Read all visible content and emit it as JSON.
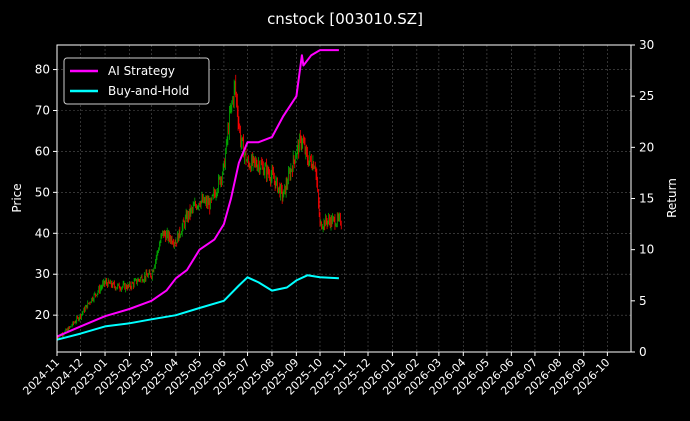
{
  "chart_data": {
    "type": "line",
    "title": "cnstock [003010.SZ]",
    "xlabel": "",
    "ylabel_left": "Price",
    "ylabel_right": "Return",
    "grid": true,
    "legend_position": "top-left",
    "background": "#000000",
    "x_tick_labels": [
      "2024-11",
      "2024-12",
      "2025-01",
      "2025-02",
      "2025-03",
      "2025-04",
      "2025-05",
      "2025-06",
      "2025-07",
      "2025-08",
      "2025-09",
      "2025-10",
      "2025-11",
      "2025-12",
      "2026-01",
      "2026-02",
      "2026-03",
      "2026-04",
      "2026-05",
      "2026-06",
      "2026-07",
      "2026-08",
      "2026-09",
      "2026-10"
    ],
    "x_range": [
      "2024-11-01",
      "2026-10-31"
    ],
    "y_left": {
      "min": 11,
      "max": 86,
      "ticks": [
        20,
        30,
        40,
        50,
        60,
        70,
        80
      ]
    },
    "y_right": {
      "min": 0,
      "max": 30,
      "ticks": [
        0,
        5,
        10,
        15,
        20,
        25,
        30
      ]
    },
    "price_series": {
      "name": "",
      "up_color": "#00aa00",
      "down_color": "#ff0000",
      "dates": [
        "2024-11-01",
        "2024-11-15",
        "2024-12-01",
        "2024-12-15",
        "2025-01-01",
        "2025-01-15",
        "2025-02-01",
        "2025-02-15",
        "2025-03-01",
        "2025-03-15",
        "2025-04-01",
        "2025-04-15",
        "2025-05-01",
        "2025-05-15",
        "2025-06-01",
        "2025-06-08",
        "2025-06-15",
        "2025-06-22",
        "2025-07-01",
        "2025-07-15",
        "2025-08-01",
        "2025-08-15",
        "2025-09-01",
        "2025-09-08",
        "2025-09-15",
        "2025-09-25",
        "2025-10-01",
        "2025-10-10",
        "2025-10-20",
        "2025-10-28"
      ],
      "close": [
        14.5,
        16.5,
        20,
        24,
        28,
        27,
        27,
        29,
        30,
        40,
        38,
        44,
        48,
        47,
        56,
        68,
        76,
        63,
        57,
        57,
        54,
        49,
        60,
        63,
        58,
        57,
        42,
        43,
        43,
        43
      ]
    },
    "series": [
      {
        "name": "AI Strategy",
        "color": "#ff00ff",
        "x": [
          "2024-11-01",
          "2024-12-01",
          "2025-01-01",
          "2025-02-01",
          "2025-03-01",
          "2025-03-20",
          "2025-04-01",
          "2025-04-15",
          "2025-05-01",
          "2025-05-20",
          "2025-06-01",
          "2025-06-10",
          "2025-06-20",
          "2025-07-01",
          "2025-07-15",
          "2025-08-01",
          "2025-08-15",
          "2025-09-01",
          "2025-09-08",
          "2025-09-10",
          "2025-09-20",
          "2025-10-01",
          "2025-10-25"
        ],
        "values": [
          1.5,
          2.5,
          3.5,
          4.2,
          5.0,
          6.0,
          7.2,
          8.0,
          10.0,
          11.0,
          12.5,
          15.0,
          18.5,
          20.5,
          20.5,
          21.0,
          23.0,
          25.0,
          29.0,
          28.0,
          29.0,
          29.5,
          29.5
        ]
      },
      {
        "name": "Buy-and-Hold",
        "color": "#00ffff",
        "x": [
          "2024-11-01",
          "2024-12-01",
          "2025-01-01",
          "2025-02-01",
          "2025-03-01",
          "2025-04-01",
          "2025-05-01",
          "2025-06-01",
          "2025-06-20",
          "2025-07-01",
          "2025-07-15",
          "2025-08-01",
          "2025-08-20",
          "2025-09-01",
          "2025-09-15",
          "2025-10-01",
          "2025-10-25"
        ],
        "values": [
          1.2,
          1.8,
          2.5,
          2.8,
          3.2,
          3.6,
          4.3,
          5.0,
          6.5,
          7.3,
          6.8,
          6.0,
          6.3,
          7.0,
          7.5,
          7.3,
          7.2
        ]
      }
    ]
  }
}
